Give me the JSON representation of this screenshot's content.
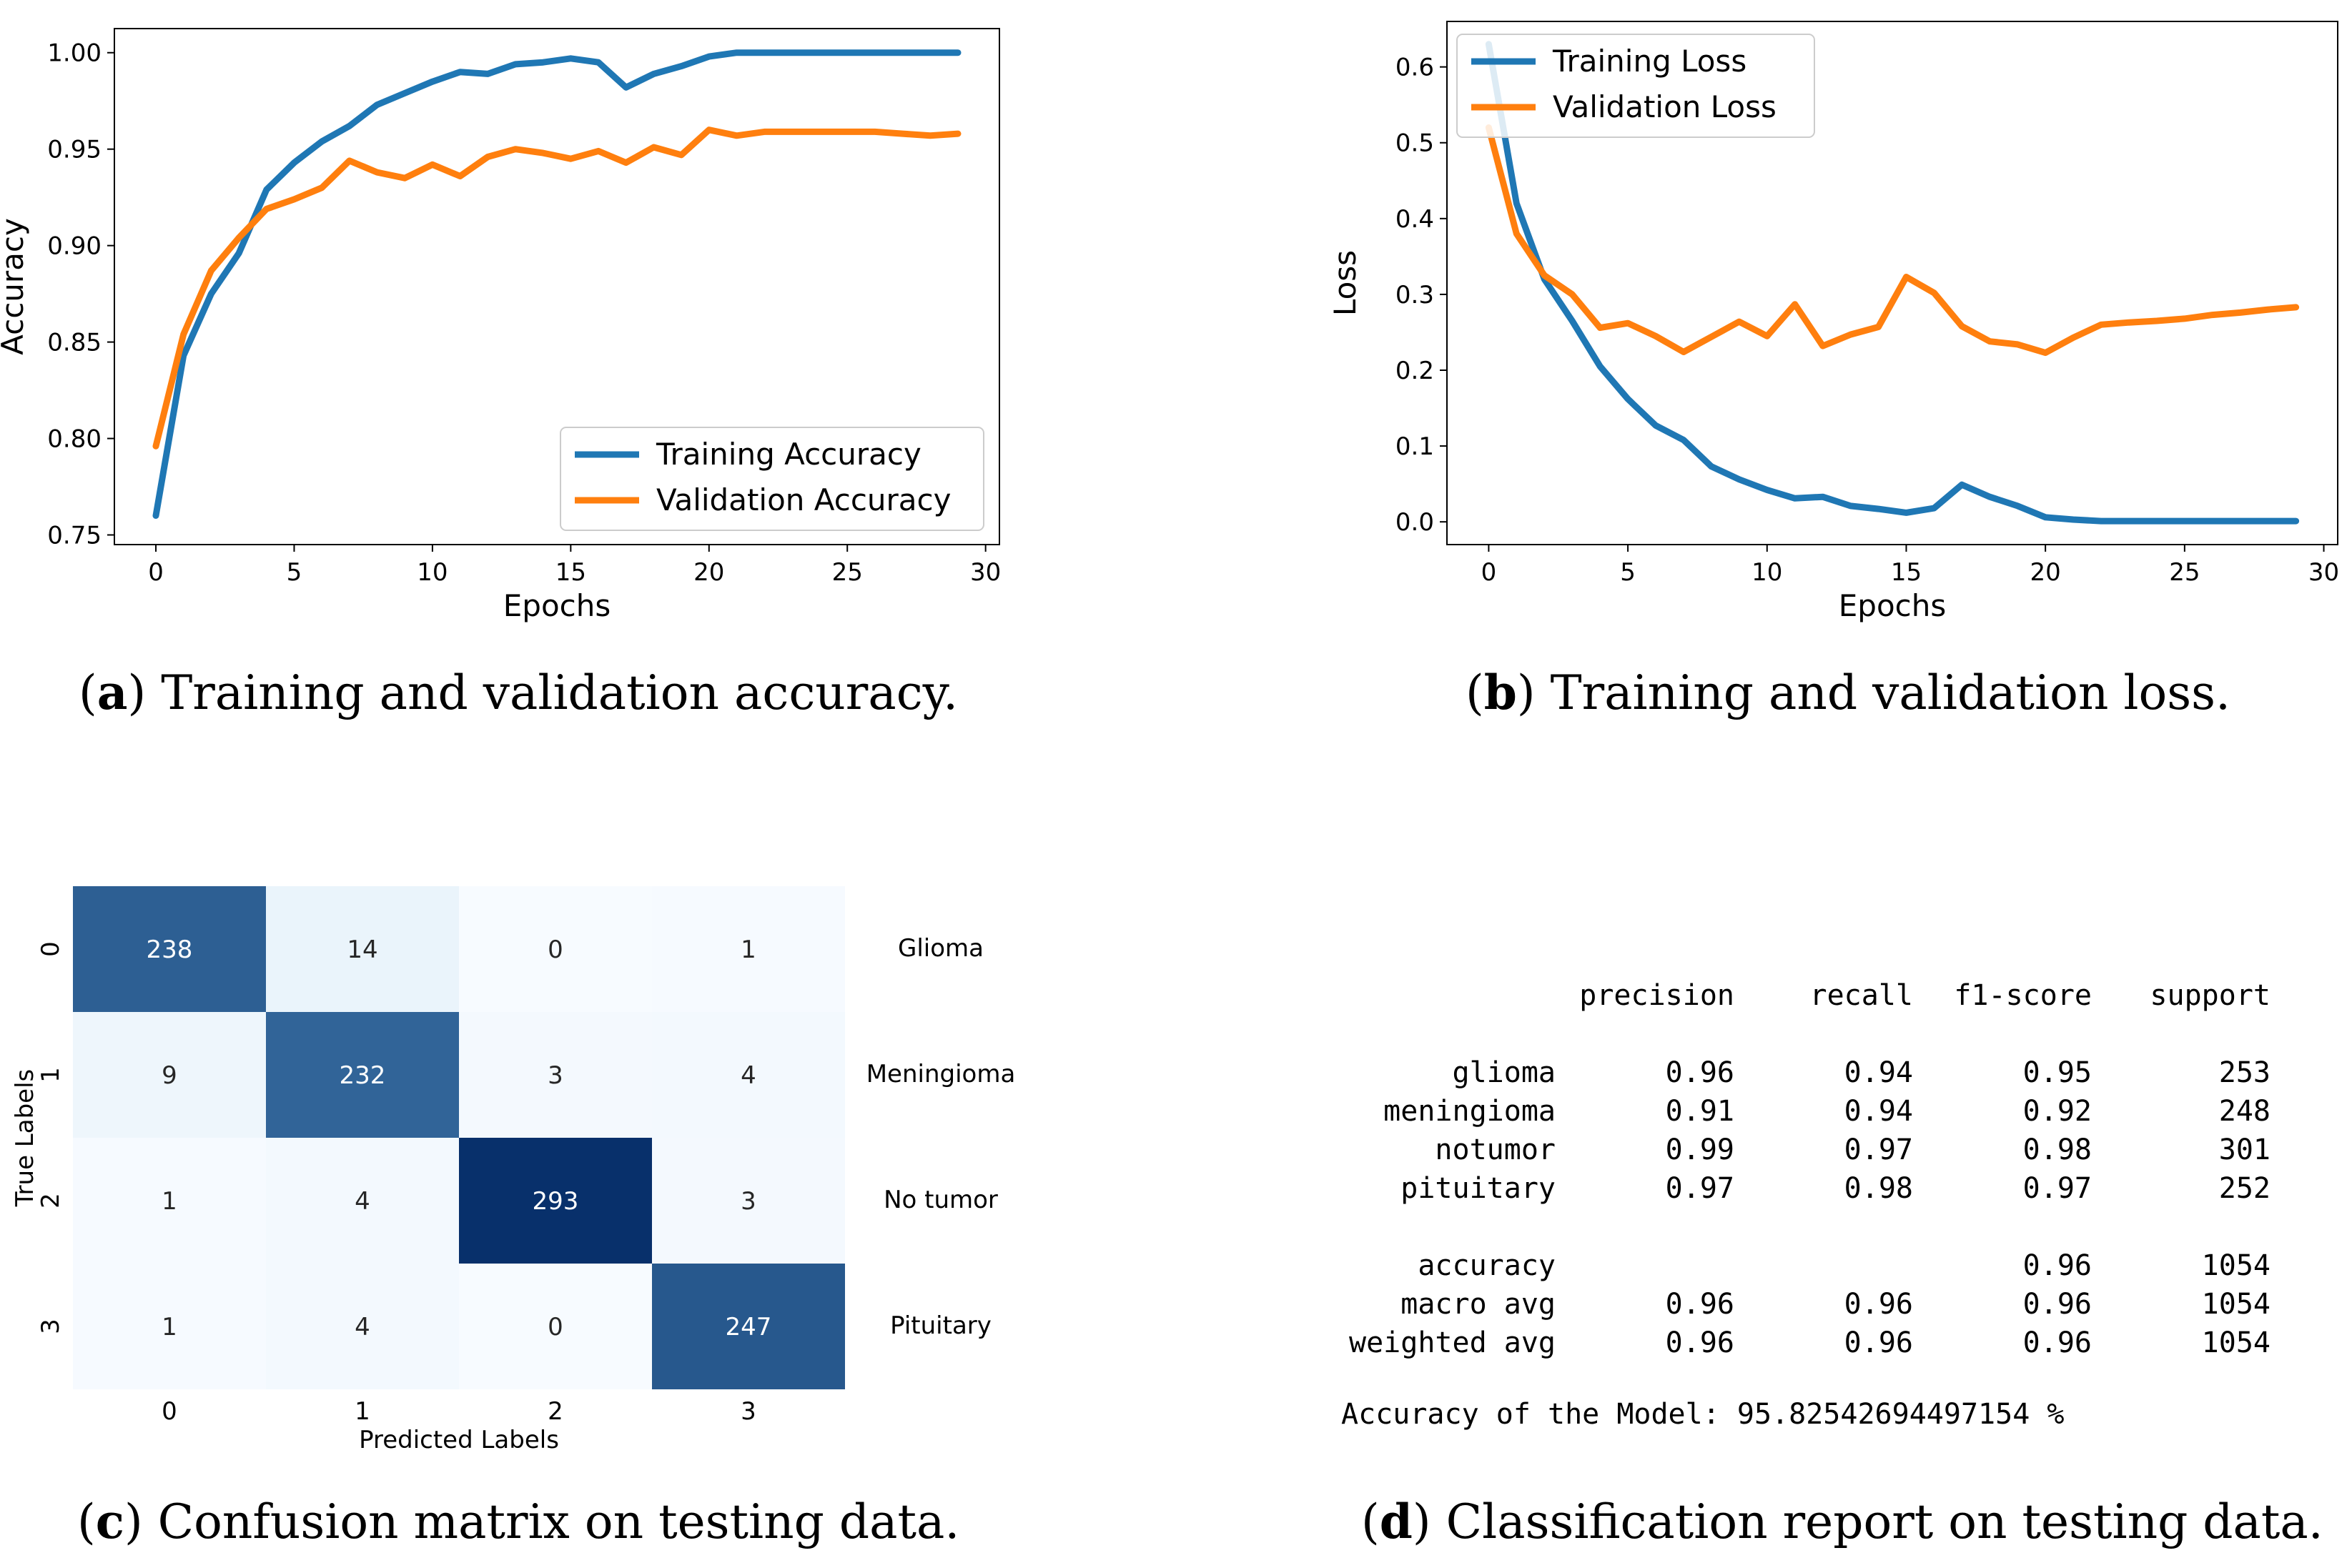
{
  "colors": {
    "training": "#1f77b4",
    "validation": "#ff7f0e"
  },
  "captions": {
    "a": {
      "letter": "a",
      "text": " Training and validation accuracy."
    },
    "b": {
      "letter": "b",
      "text": " Training and validation loss."
    },
    "c": {
      "letter": "c",
      "text": " Confusion matrix on testing data."
    },
    "d": {
      "letter": "d",
      "text": " Classification report on testing data."
    }
  },
  "chart_data": [
    {
      "type": "line",
      "xlabel": "Epochs",
      "ylabel": "Accuracy",
      "xlim": [
        -1.5,
        30.5
      ],
      "ylim": [
        0.745,
        1.0125
      ],
      "xticks": [
        0,
        5,
        10,
        15,
        20,
        25,
        30
      ],
      "yticks": [
        0.75,
        0.8,
        0.85,
        0.9,
        0.95,
        1.0
      ],
      "ytick_labels": [
        "0.75",
        "0.80",
        "0.85",
        "0.90",
        "0.95",
        "1.00"
      ],
      "legend_position": "lower-right",
      "x": [
        0,
        1,
        2,
        3,
        4,
        5,
        6,
        7,
        8,
        9,
        10,
        11,
        12,
        13,
        14,
        15,
        16,
        17,
        18,
        19,
        20,
        21,
        22,
        23,
        24,
        25,
        26,
        27,
        28,
        29
      ],
      "series": [
        {
          "name": "Training Accuracy",
          "values": [
            0.76,
            0.843,
            0.875,
            0.896,
            0.929,
            0.943,
            0.954,
            0.962,
            0.973,
            0.979,
            0.985,
            0.99,
            0.989,
            0.994,
            0.995,
            0.997,
            0.995,
            0.982,
            0.989,
            0.993,
            0.998,
            1.0,
            1.0,
            1.0,
            1.0,
            1.0,
            1.0,
            1.0,
            1.0,
            1.0
          ]
        },
        {
          "name": "Validation Accuracy",
          "values": [
            0.796,
            0.854,
            0.887,
            0.904,
            0.919,
            0.924,
            0.93,
            0.944,
            0.938,
            0.935,
            0.942,
            0.936,
            0.946,
            0.95,
            0.948,
            0.945,
            0.949,
            0.943,
            0.951,
            0.947,
            0.96,
            0.957,
            0.959,
            0.959,
            0.959,
            0.959,
            0.959,
            0.958,
            0.957,
            0.958
          ]
        }
      ]
    },
    {
      "type": "line",
      "xlabel": "Epochs",
      "ylabel": "Loss",
      "xlim": [
        -1.5,
        30.5
      ],
      "ylim": [
        -0.03,
        0.66
      ],
      "xticks": [
        0,
        5,
        10,
        15,
        20,
        25,
        30
      ],
      "yticks": [
        0.0,
        0.1,
        0.2,
        0.3,
        0.4,
        0.5,
        0.6
      ],
      "ytick_labels": [
        "0.0",
        "0.1",
        "0.2",
        "0.3",
        "0.4",
        "0.5",
        "0.6"
      ],
      "legend_position": "upper-left",
      "x": [
        0,
        1,
        2,
        3,
        4,
        5,
        6,
        7,
        8,
        9,
        10,
        11,
        12,
        13,
        14,
        15,
        16,
        17,
        18,
        19,
        20,
        21,
        22,
        23,
        24,
        25,
        26,
        27,
        28,
        29
      ],
      "series": [
        {
          "name": "Training Loss",
          "values": [
            0.63,
            0.42,
            0.32,
            0.265,
            0.205,
            0.162,
            0.127,
            0.108,
            0.073,
            0.056,
            0.042,
            0.031,
            0.033,
            0.021,
            0.017,
            0.012,
            0.018,
            0.049,
            0.033,
            0.021,
            0.006,
            0.003,
            0.001,
            0.001,
            0.001,
            0.001,
            0.001,
            0.001,
            0.001,
            0.001
          ]
        },
        {
          "name": "Validation Loss",
          "values": [
            0.52,
            0.38,
            0.325,
            0.3,
            0.256,
            0.262,
            0.245,
            0.224,
            0.244,
            0.264,
            0.245,
            0.287,
            0.232,
            0.247,
            0.257,
            0.323,
            0.302,
            0.258,
            0.238,
            0.234,
            0.223,
            0.243,
            0.26,
            0.263,
            0.265,
            0.268,
            0.273,
            0.276,
            0.28,
            0.283
          ]
        }
      ]
    },
    {
      "type": "heatmap",
      "xlabel": "Predicted Labels",
      "ylabel": "True Labels",
      "xticks": [
        "0",
        "1",
        "2",
        "3"
      ],
      "yticks": [
        "0",
        "1",
        "2",
        "3"
      ],
      "row_labels": [
        "Glioma",
        "Meningioma",
        "No tumor",
        "Pituitary"
      ],
      "matrix": [
        [
          238,
          14,
          0,
          1
        ],
        [
          9,
          232,
          3,
          4
        ],
        [
          1,
          4,
          293,
          3
        ],
        [
          1,
          4,
          0,
          247
        ]
      ],
      "colormap": "Blues",
      "vmax": 293
    },
    {
      "type": "table",
      "header": [
        "",
        "precision",
        "recall",
        "f1-score",
        "support"
      ],
      "rows": [
        [
          "glioma",
          "0.96",
          "0.94",
          "0.95",
          "253"
        ],
        [
          "meningioma",
          "0.91",
          "0.94",
          "0.92",
          "248"
        ],
        [
          "notumor",
          "0.99",
          "0.97",
          "0.98",
          "301"
        ],
        [
          "pituitary",
          "0.97",
          "0.98",
          "0.97",
          "252"
        ]
      ],
      "summary_rows": [
        [
          "accuracy",
          "",
          "",
          "0.96",
          "1054"
        ],
        [
          "macro avg",
          "0.96",
          "0.96",
          "0.96",
          "1054"
        ],
        [
          "weighted avg",
          "0.96",
          "0.96",
          "0.96",
          "1054"
        ]
      ],
      "accuracy_line": "Accuracy of the Model: 95.82542694497154 %"
    }
  ]
}
